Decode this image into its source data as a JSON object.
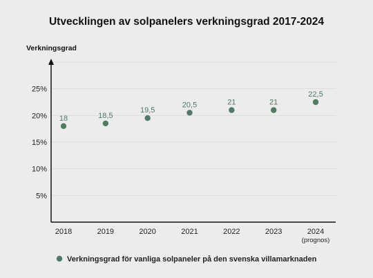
{
  "chart_data": {
    "type": "scatter",
    "title": "Utvecklingen av solpanelers verkningsgrad 2017-2024",
    "ylabel": "Verkningsgrad",
    "xlabel": "",
    "categories": [
      "2018",
      "2019",
      "2020",
      "2021",
      "2022",
      "2023",
      "2024"
    ],
    "category_sublabels": [
      "",
      "",
      "",
      "",
      "",
      "",
      "(prognos)"
    ],
    "series": [
      {
        "name": "Verkningsgrad för vanliga solpaneler på den svenska villamarknaden",
        "values": [
          18,
          18.5,
          19.5,
          20.5,
          21,
          21,
          22.5
        ],
        "data_labels": [
          "18",
          "18,5",
          "19,5",
          "20,5",
          "21",
          "21",
          "22,5"
        ],
        "color": "#4f7a63"
      }
    ],
    "ylim": [
      0,
      30
    ],
    "yticks": [
      5,
      10,
      15,
      20,
      25
    ],
    "ytick_labels": [
      "5%",
      "10%",
      "15%",
      "20%",
      "25%"
    ],
    "grid": true,
    "legend_position": "bottom"
  }
}
